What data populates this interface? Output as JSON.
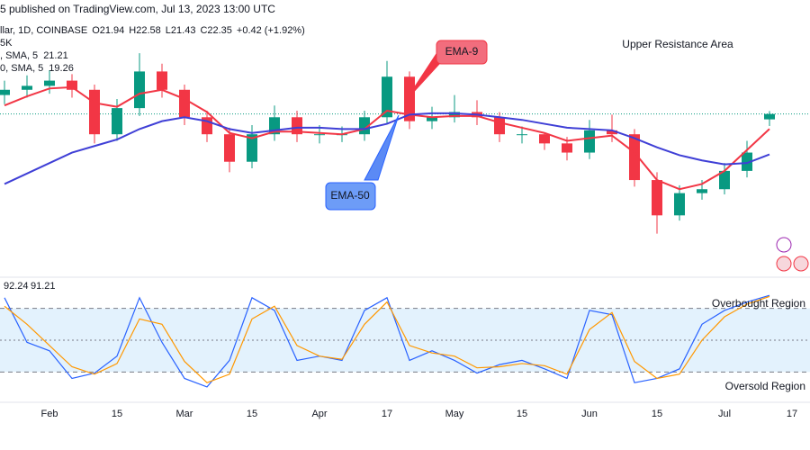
{
  "chart_data": [
    {
      "type": "candlestick",
      "header": "5 published on TradingView.com, Jul 13, 2023 13:00 UTC",
      "symbol": "llar, 1D, COINBASE",
      "ohlc_labels": [
        "O",
        "H",
        "L",
        "C"
      ],
      "ohlc_values": [
        21.94,
        22.58,
        21.43,
        22.35
      ],
      "change": "+0.42 (+1.92%)",
      "volume_label": "5K",
      "annotations": [
        "Upper Resistance Area",
        "EMA-9",
        "EMA-50"
      ],
      "categories": [
        null,
        null,
        "Feb",
        null,
        null,
        "15",
        null,
        null,
        "Mar",
        null,
        null,
        "15",
        null,
        null,
        "Apr",
        null,
        null,
        "17",
        null,
        null,
        "May",
        null,
        null,
        "15",
        null,
        null,
        "Jun",
        null,
        null,
        "15",
        null,
        null,
        "Jul",
        null,
        null,
        "17"
      ],
      "open": [
        23.8,
        24.2,
        24.5,
        24.9,
        24.2,
        20.8,
        22.8,
        25.6,
        24.2,
        22.1,
        20.8,
        18.7,
        20.8,
        22.1,
        20.8,
        20.8,
        20.8,
        22.1,
        25.2,
        21.8,
        22.1,
        22.5,
        22.1,
        20.8,
        20.8,
        20.1,
        19.4,
        21.1,
        20.8,
        17.3,
        14.6,
        16.3,
        16.6,
        18.0,
        21.94,
        null
      ],
      "high": [
        24.9,
        25.3,
        25.7,
        25.4,
        24.6,
        23.5,
        27.0,
        26.2,
        24.6,
        22.6,
        21.3,
        21.5,
        23.0,
        22.6,
        21.5,
        21.4,
        22.6,
        26.4,
        25.6,
        22.9,
        23.8,
        23.4,
        22.5,
        21.4,
        20.9,
        20.6,
        21.9,
        22.3,
        21.2,
        17.9,
        16.9,
        17.3,
        18.6,
        20.3,
        22.58,
        null
      ],
      "low": [
        23.1,
        23.6,
        23.9,
        23.6,
        20.1,
        20.3,
        22.2,
        23.6,
        21.5,
        20.2,
        17.9,
        18.2,
        20.3,
        20.2,
        20.1,
        20.2,
        20.3,
        21.6,
        21.2,
        21.2,
        21.7,
        21.5,
        20.2,
        20.1,
        19.6,
        18.8,
        18.9,
        20.2,
        16.8,
        13.2,
        14.2,
        15.8,
        16.2,
        17.5,
        21.43,
        null
      ],
      "close": [
        24.2,
        24.5,
        24.9,
        24.2,
        20.8,
        22.8,
        25.6,
        24.2,
        22.1,
        20.8,
        18.7,
        20.8,
        22.1,
        20.8,
        20.8,
        20.8,
        22.1,
        25.2,
        21.8,
        22.1,
        22.5,
        22.1,
        20.8,
        20.8,
        20.1,
        19.4,
        21.1,
        20.8,
        17.3,
        14.6,
        16.3,
        16.6,
        18.0,
        19.4,
        22.35,
        null
      ],
      "up_color": "#089981",
      "down_color": "#f23645",
      "series": [
        {
          "name": ", SMA, 5",
          "color": "#f23645",
          "values": [
            23.0,
            23.7,
            24.3,
            24.4,
            23.2,
            22.9,
            23.9,
            24.2,
            23.5,
            22.5,
            20.9,
            20.5,
            21.0,
            21.0,
            20.9,
            20.8,
            21.2,
            22.6,
            22.3,
            22.1,
            22.2,
            22.2,
            21.7,
            21.3,
            20.9,
            20.3,
            20.5,
            20.7,
            19.4,
            17.3,
            16.6,
            17.0,
            18.0,
            19.6,
            21.21,
            null
          ]
        },
        {
          "name": "0, SMA, 5",
          "color": "#3f3fd6",
          "values": [
            17.0,
            17.8,
            18.6,
            19.4,
            19.9,
            20.4,
            21.2,
            21.8,
            22.1,
            21.8,
            21.2,
            20.9,
            21.1,
            21.3,
            21.3,
            21.2,
            21.2,
            21.6,
            22.3,
            22.4,
            22.4,
            22.3,
            22.1,
            21.9,
            21.6,
            21.3,
            21.2,
            21.1,
            20.5,
            19.8,
            19.2,
            18.8,
            18.5,
            18.6,
            19.26,
            null
          ]
        }
      ],
      "ylim": [
        11.8,
        29.0
      ]
    },
    {
      "type": "line",
      "annotations": [
        "Overbought Region",
        "Oversold Region"
      ],
      "levels": [
        80,
        50,
        20
      ],
      "band_color": "#e3f2fd",
      "series": [
        {
          "color": "#2962ff",
          "values": [
            90,
            48,
            40,
            14,
            19,
            35,
            90,
            48,
            14,
            6,
            31,
            90,
            78,
            31,
            35,
            31,
            78,
            90,
            31,
            40,
            31,
            19,
            27,
            31,
            23,
            14,
            78,
            74,
            10,
            14,
            23,
            65,
            78,
            86,
            92.24,
            null
          ]
        },
        {
          "color": "#ff9800",
          "values": [
            82,
            65,
            45,
            25,
            18,
            28,
            70,
            65,
            30,
            10,
            18,
            70,
            82,
            45,
            35,
            32,
            65,
            86,
            45,
            38,
            35,
            24,
            25,
            28,
            26,
            18,
            60,
            76,
            30,
            14,
            18,
            50,
            72,
            84,
            91.21,
            null
          ]
        }
      ],
      "ylim": [
        0,
        100
      ]
    }
  ]
}
